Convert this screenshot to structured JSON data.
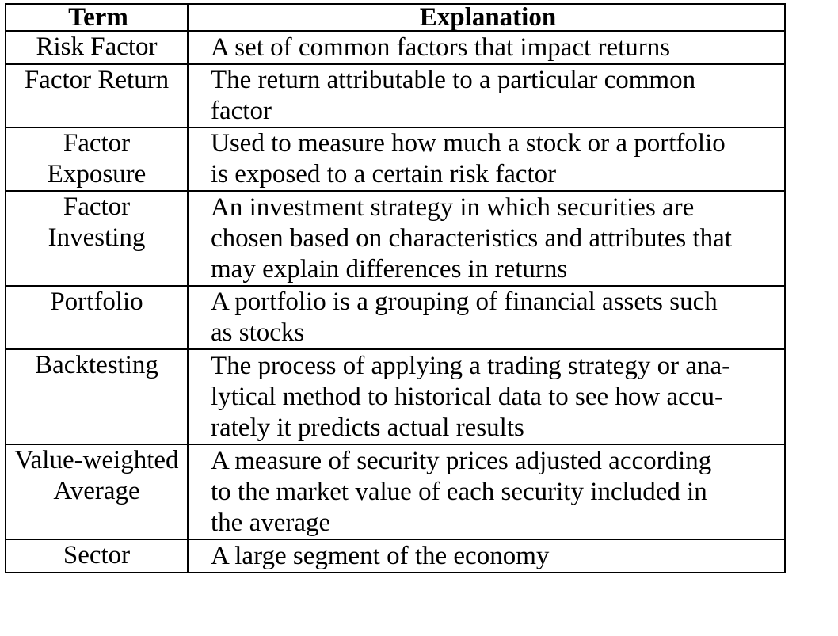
{
  "table": {
    "headers": {
      "term": "Term",
      "explanation": "Explanation"
    },
    "rows": [
      {
        "term_lines": [
          "Risk Factor"
        ],
        "explanation_lines": [
          "A set of common factors that impact returns"
        ]
      },
      {
        "term_lines": [
          "Factor Return"
        ],
        "explanation_lines": [
          "The return attributable to a particular common",
          "factor"
        ]
      },
      {
        "term_lines": [
          "Factor",
          "Exposure"
        ],
        "explanation_lines": [
          "Used to measure how much a stock or a portfolio",
          "is exposed to a certain risk factor"
        ]
      },
      {
        "term_lines": [
          "Factor",
          "Investing"
        ],
        "explanation_lines": [
          "An investment strategy in which securities are",
          "chosen based on characteristics and attributes that",
          "may explain differences in returns"
        ]
      },
      {
        "term_lines": [
          "Portfolio"
        ],
        "explanation_lines": [
          "A portfolio is a grouping of financial assets such",
          "as stocks"
        ]
      },
      {
        "term_lines": [
          "Backtesting"
        ],
        "explanation_lines": [
          "The process of applying a trading strategy or ana-",
          "lytical method to historical data to see how accu-",
          "rately it predicts actual results"
        ]
      },
      {
        "term_lines": [
          "Value-weighted",
          "Average"
        ],
        "explanation_lines": [
          "A measure of security prices adjusted according",
          "to the market value of each security included in",
          "the average"
        ]
      },
      {
        "term_lines": [
          "Sector"
        ],
        "explanation_lines": [
          "A large segment of the economy"
        ]
      }
    ]
  }
}
